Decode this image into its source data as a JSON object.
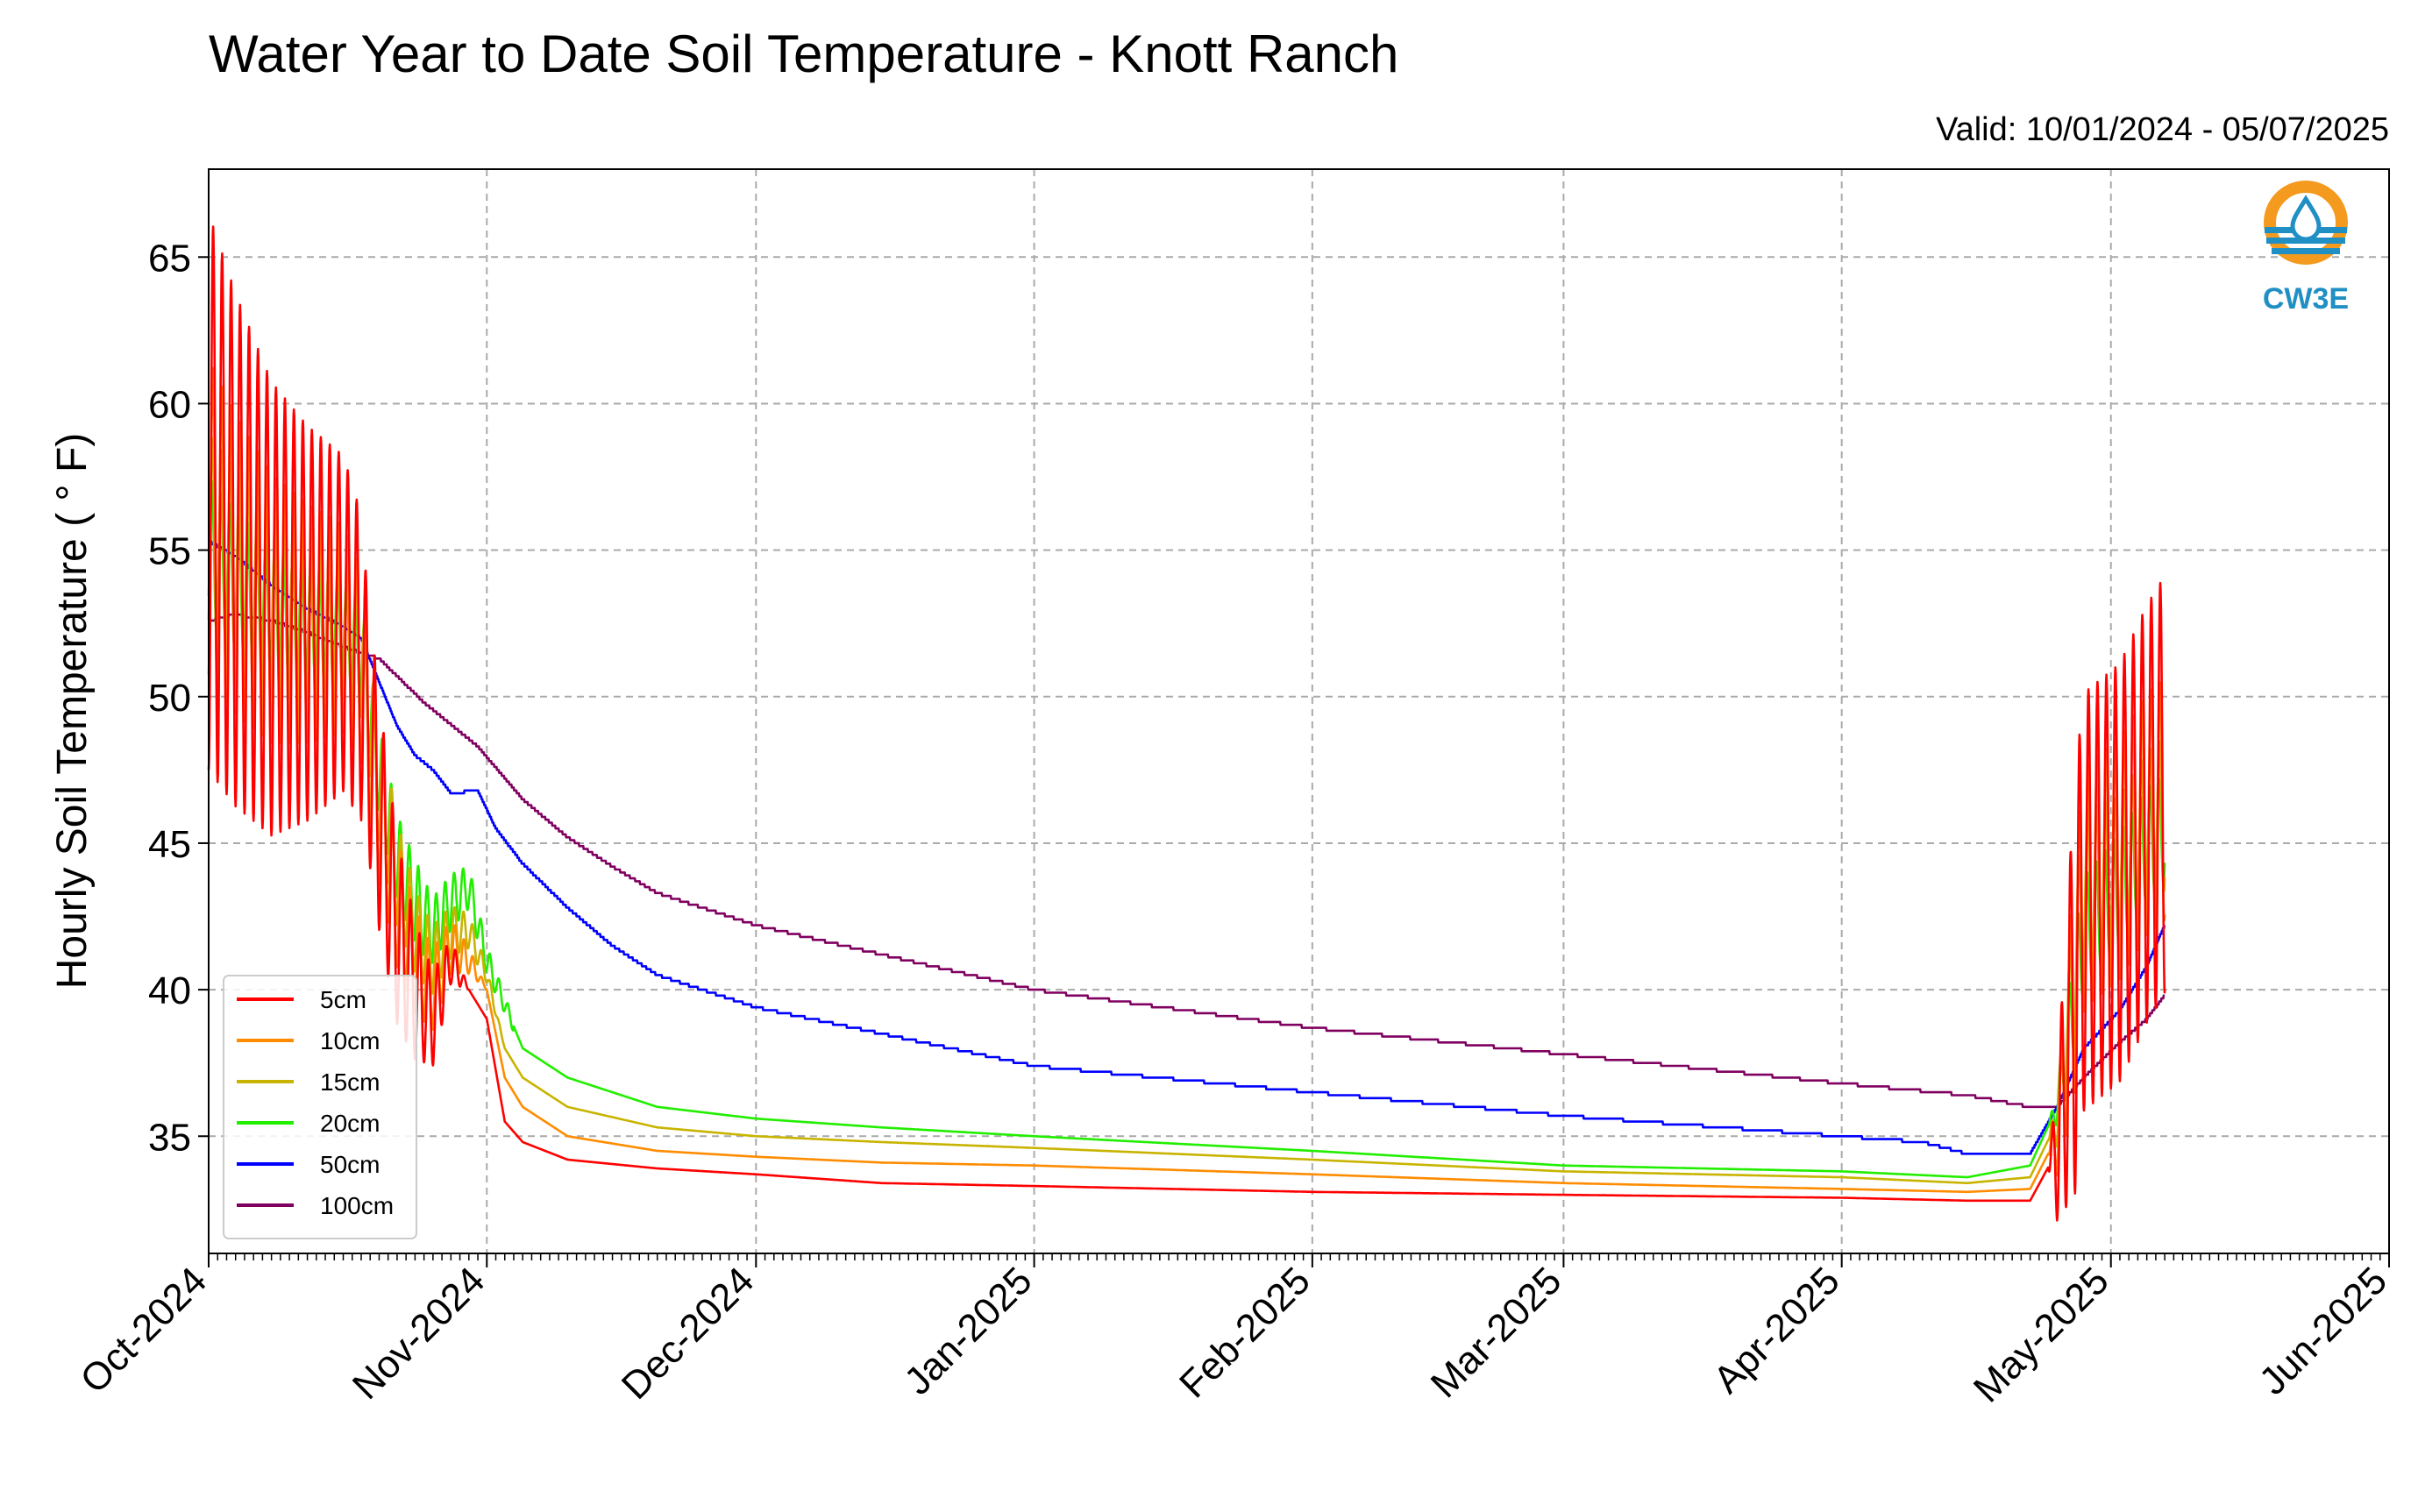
{
  "chart_data": {
    "type": "line",
    "title": "Water Year to Date Soil Temperature - Knott Ranch",
    "subtitle": "Valid: 10/01/2024 - 05/07/2025",
    "xlabel": "",
    "ylabel": "Hourly Soil Temperature ( ° F)",
    "xlim": [
      "2024-10-01",
      "2025-06-01"
    ],
    "ylim": [
      31,
      68
    ],
    "grid": true,
    "legend_position": "lower-left",
    "x_ticks": [
      "Oct-2024",
      "Nov-2024",
      "Dec-2024",
      "Jan-2025",
      "Feb-2025",
      "Mar-2025",
      "Apr-2025",
      "May-2025",
      "Jun-2025"
    ],
    "x_tick_dates": [
      "2024-10-01",
      "2024-11-01",
      "2024-12-01",
      "2025-01-01",
      "2025-02-01",
      "2025-03-01",
      "2025-04-01",
      "2025-05-01",
      "2025-06-01"
    ],
    "y_ticks": [
      35,
      40,
      45,
      50,
      55,
      60,
      65
    ],
    "series": [
      {
        "name": "5cm",
        "color": "#ff0000",
        "amplitude": 9.5,
        "amp_decay_until": "2024-10-18",
        "points": [
          [
            "2024-10-01",
            57
          ],
          [
            "2024-10-04",
            55
          ],
          [
            "2024-10-08",
            53
          ],
          [
            "2024-10-12",
            52.5
          ],
          [
            "2024-10-16",
            52.5
          ],
          [
            "2024-10-18",
            51
          ],
          [
            "2024-10-20",
            46
          ],
          [
            "2024-10-22",
            42
          ],
          [
            "2024-10-24",
            40
          ],
          [
            "2024-10-26",
            39
          ],
          [
            "2024-10-28",
            41
          ],
          [
            "2024-10-30",
            40
          ],
          [
            "2024-11-01",
            39
          ],
          [
            "2024-11-03",
            35.5
          ],
          [
            "2024-11-05",
            34.8
          ],
          [
            "2024-11-10",
            34.2
          ],
          [
            "2024-11-20",
            33.9
          ],
          [
            "2024-12-01",
            33.7
          ],
          [
            "2024-12-15",
            33.4
          ],
          [
            "2025-01-01",
            33.3
          ],
          [
            "2025-02-01",
            33.1
          ],
          [
            "2025-03-01",
            33.0
          ],
          [
            "2025-04-01",
            32.9
          ],
          [
            "2025-04-15",
            32.8
          ],
          [
            "2025-04-22",
            32.8
          ],
          [
            "2025-04-25",
            34.5
          ],
          [
            "2025-04-28",
            43
          ],
          [
            "2025-05-02",
            44
          ],
          [
            "2025-05-05",
            46
          ],
          [
            "2025-05-07",
            47
          ]
        ]
      },
      {
        "name": "10cm",
        "color": "#ff8c00",
        "amplitude": 5.5,
        "amp_decay_until": "2024-10-20",
        "points": [
          [
            "2024-10-01",
            56
          ],
          [
            "2024-10-04",
            54.5
          ],
          [
            "2024-10-08",
            53
          ],
          [
            "2024-10-12",
            52.5
          ],
          [
            "2024-10-16",
            52.3
          ],
          [
            "2024-10-18",
            51
          ],
          [
            "2024-10-20",
            46.5
          ],
          [
            "2024-10-22",
            43
          ],
          [
            "2024-10-24",
            41
          ],
          [
            "2024-10-26",
            40
          ],
          [
            "2024-10-28",
            41.5
          ],
          [
            "2024-10-30",
            41
          ],
          [
            "2024-11-01",
            40
          ],
          [
            "2024-11-03",
            37
          ],
          [
            "2024-11-05",
            36
          ],
          [
            "2024-11-10",
            35
          ],
          [
            "2024-11-20",
            34.5
          ],
          [
            "2024-12-01",
            34.3
          ],
          [
            "2024-12-15",
            34.1
          ],
          [
            "2025-01-01",
            34.0
          ],
          [
            "2025-02-01",
            33.7
          ],
          [
            "2025-03-01",
            33.4
          ],
          [
            "2025-04-01",
            33.2
          ],
          [
            "2025-04-15",
            33.1
          ],
          [
            "2025-04-22",
            33.2
          ],
          [
            "2025-04-25",
            35
          ],
          [
            "2025-04-28",
            43.5
          ],
          [
            "2025-05-02",
            44.5
          ],
          [
            "2025-05-05",
            46
          ],
          [
            "2025-05-07",
            46.5
          ]
        ]
      },
      {
        "name": "15cm",
        "color": "#c8b400",
        "amplitude": 3.5,
        "amp_decay_until": "2024-10-22",
        "points": [
          [
            "2024-10-01",
            55.5
          ],
          [
            "2024-10-04",
            54.5
          ],
          [
            "2024-10-08",
            53
          ],
          [
            "2024-10-12",
            52.5
          ],
          [
            "2024-10-16",
            52.3
          ],
          [
            "2024-10-18",
            51.5
          ],
          [
            "2024-10-20",
            47
          ],
          [
            "2024-10-22",
            44
          ],
          [
            "2024-10-24",
            42
          ],
          [
            "2024-10-26",
            41
          ],
          [
            "2024-10-28",
            42
          ],
          [
            "2024-10-30",
            42
          ],
          [
            "2024-11-01",
            40.5
          ],
          [
            "2024-11-03",
            38
          ],
          [
            "2024-11-05",
            37
          ],
          [
            "2024-11-10",
            36
          ],
          [
            "2024-11-20",
            35.3
          ],
          [
            "2024-12-01",
            35.0
          ],
          [
            "2024-12-15",
            34.8
          ],
          [
            "2025-01-01",
            34.6
          ],
          [
            "2025-02-01",
            34.2
          ],
          [
            "2025-03-01",
            33.8
          ],
          [
            "2025-04-01",
            33.6
          ],
          [
            "2025-04-15",
            33.4
          ],
          [
            "2025-04-22",
            33.6
          ],
          [
            "2025-04-25",
            35.5
          ],
          [
            "2025-04-28",
            43.5
          ],
          [
            "2025-05-02",
            44
          ],
          [
            "2025-05-05",
            45.5
          ],
          [
            "2025-05-07",
            46
          ]
        ]
      },
      {
        "name": "20cm",
        "color": "#22ee00",
        "amplitude": 2.5,
        "amp_decay_until": "2024-10-25",
        "points": [
          [
            "2024-10-01",
            55
          ],
          [
            "2024-10-04",
            54
          ],
          [
            "2024-10-08",
            53
          ],
          [
            "2024-10-12",
            52.5
          ],
          [
            "2024-10-16",
            52.3
          ],
          [
            "2024-10-18",
            51.5
          ],
          [
            "2024-10-20",
            47.5
          ],
          [
            "2024-10-22",
            44.5
          ],
          [
            "2024-10-24",
            43
          ],
          [
            "2024-10-26",
            42
          ],
          [
            "2024-10-28",
            43
          ],
          [
            "2024-10-30",
            43.5
          ],
          [
            "2024-11-01",
            41
          ],
          [
            "2024-11-03",
            39.5
          ],
          [
            "2024-11-05",
            38
          ],
          [
            "2024-11-10",
            37
          ],
          [
            "2024-11-20",
            36
          ],
          [
            "2024-12-01",
            35.6
          ],
          [
            "2024-12-15",
            35.3
          ],
          [
            "2025-01-01",
            35.0
          ],
          [
            "2025-02-01",
            34.5
          ],
          [
            "2025-03-01",
            34.0
          ],
          [
            "2025-04-01",
            33.8
          ],
          [
            "2025-04-15",
            33.6
          ],
          [
            "2025-04-22",
            34.0
          ],
          [
            "2025-04-25",
            36
          ],
          [
            "2025-04-28",
            42
          ],
          [
            "2025-05-02",
            43.5
          ],
          [
            "2025-05-05",
            45
          ],
          [
            "2025-05-07",
            45.5
          ]
        ]
      },
      {
        "name": "50cm",
        "color": "#0000ff",
        "amplitude": 0,
        "amp_decay_until": "2024-10-01",
        "points": [
          [
            "2024-10-01",
            55.3
          ],
          [
            "2024-10-04",
            54.8
          ],
          [
            "2024-10-08",
            53.8
          ],
          [
            "2024-10-12",
            53
          ],
          [
            "2024-10-16",
            52.4
          ],
          [
            "2024-10-18",
            52
          ],
          [
            "2024-10-20",
            50.5
          ],
          [
            "2024-10-22",
            49
          ],
          [
            "2024-10-24",
            48
          ],
          [
            "2024-10-26",
            47.5
          ],
          [
            "2024-10-28",
            46.7
          ],
          [
            "2024-10-31",
            46.8
          ],
          [
            "2024-11-02",
            45.5
          ],
          [
            "2024-11-05",
            44.3
          ],
          [
            "2024-11-10",
            42.8
          ],
          [
            "2024-11-15",
            41.5
          ],
          [
            "2024-11-20",
            40.5
          ],
          [
            "2024-12-01",
            39.4
          ],
          [
            "2024-12-15",
            38.5
          ],
          [
            "2025-01-01",
            37.4
          ],
          [
            "2025-02-01",
            36.5
          ],
          [
            "2025-03-01",
            35.7
          ],
          [
            "2025-04-01",
            35.0
          ],
          [
            "2025-04-10",
            34.8
          ],
          [
            "2025-04-15",
            34.4
          ],
          [
            "2025-04-22",
            34.4
          ],
          [
            "2025-04-25",
            36
          ],
          [
            "2025-04-28",
            38
          ],
          [
            "2025-05-02",
            39.3
          ],
          [
            "2025-05-05",
            40.8
          ],
          [
            "2025-05-07",
            42.2
          ]
        ]
      },
      {
        "name": "100cm",
        "color": "#800060",
        "amplitude": 0,
        "amp_decay_until": "2024-10-01",
        "points": [
          [
            "2024-10-01",
            52.6
          ],
          [
            "2024-10-04",
            52.8
          ],
          [
            "2024-10-08",
            52.6
          ],
          [
            "2024-10-12",
            52.2
          ],
          [
            "2024-10-16",
            51.7
          ],
          [
            "2024-10-20",
            51.3
          ],
          [
            "2024-10-25",
            49.8
          ],
          [
            "2024-10-31",
            48.3
          ],
          [
            "2024-11-05",
            46.5
          ],
          [
            "2024-11-10",
            45.2
          ],
          [
            "2024-11-15",
            44.2
          ],
          [
            "2024-11-20",
            43.3
          ],
          [
            "2024-12-01",
            42.2
          ],
          [
            "2024-12-15",
            41.2
          ],
          [
            "2025-01-01",
            40.0
          ],
          [
            "2025-02-01",
            38.7
          ],
          [
            "2025-03-01",
            37.8
          ],
          [
            "2025-04-01",
            36.8
          ],
          [
            "2025-04-15",
            36.4
          ],
          [
            "2025-04-22",
            36.0
          ],
          [
            "2025-04-25",
            36.0
          ],
          [
            "2025-04-28",
            37.0
          ],
          [
            "2025-05-02",
            38.2
          ],
          [
            "2025-05-05",
            39.0
          ],
          [
            "2025-05-07",
            39.8
          ]
        ]
      }
    ]
  },
  "logo": {
    "text": "CW3E",
    "color_orange": "#f39a1f",
    "color_blue": "#1f8fc4"
  }
}
